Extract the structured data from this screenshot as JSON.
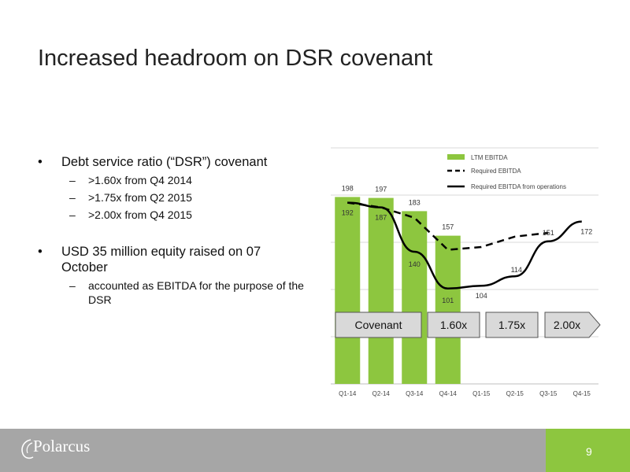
{
  "slide": {
    "title": "Increased headroom on DSR covenant",
    "page_number": "9",
    "logo_text": "Polarcus"
  },
  "bullets": [
    {
      "text": "Debt service ratio (“DSR”) covenant",
      "sub": [
        ">1.60x from Q4 2014",
        ">1.75x from Q2 2015",
        ">2.00x from Q4 2015"
      ]
    },
    {
      "text": "USD 35 million equity raised on 07 October",
      "sub": [
        "accounted as EBITDA for the purpose of the DSR"
      ]
    }
  ],
  "chart_data": {
    "type": "bar",
    "categories": [
      "Q1-14",
      "Q2-14",
      "Q3-14",
      "Q4-14",
      "Q1-15",
      "Q2-15",
      "Q3-15",
      "Q4-15"
    ],
    "series": [
      {
        "name": "LTM EBITDA",
        "kind": "bar",
        "color": "#8dc63f",
        "values": [
          198,
          197,
          183,
          157,
          null,
          null,
          null,
          null
        ]
      },
      {
        "name": "Required EBITDA",
        "kind": "line-dashed",
        "color": "#000000",
        "values": [
          192,
          187,
          176,
          142,
          145,
          156,
          160,
          null
        ]
      },
      {
        "name": "Required EBITDA from operations",
        "kind": "line",
        "color": "#000000",
        "values": [
          192,
          187,
          140,
          101,
          104,
          114,
          151,
          172
        ]
      }
    ],
    "data_labels": [
      {
        "category": "Q1-14",
        "series": "LTM EBITDA",
        "text": "198"
      },
      {
        "category": "Q2-14",
        "series": "LTM EBITDA",
        "text": "197"
      },
      {
        "category": "Q3-14",
        "series": "LTM EBITDA",
        "text": "183"
      },
      {
        "category": "Q4-14",
        "series": "LTM EBITDA",
        "text": "157"
      },
      {
        "category": "Q1-14",
        "series": "Required EBITDA from operations",
        "text": "192"
      },
      {
        "category": "Q2-14",
        "series": "Required EBITDA from operations",
        "text": "187"
      },
      {
        "category": "Q3-14",
        "series": "Required EBITDA from operations",
        "text": "140"
      },
      {
        "category": "Q4-14",
        "series": "Required EBITDA from operations",
        "text": "101"
      },
      {
        "category": "Q1-15",
        "series": "Required EBITDA from operations",
        "text": "104"
      },
      {
        "category": "Q2-15",
        "series": "Required EBITDA from operations",
        "text": "114"
      },
      {
        "category": "Q3-15",
        "series": "Required EBITDA from operations",
        "text": "151"
      },
      {
        "category": "Q4-15",
        "series": "Required EBITDA from operations",
        "text": "172"
      }
    ],
    "covenant_labels": [
      "Covenant",
      "1.60x",
      "1.75x",
      "2.00x"
    ],
    "ylim": [
      0,
      250
    ],
    "grid": true,
    "legend": "top-right"
  }
}
